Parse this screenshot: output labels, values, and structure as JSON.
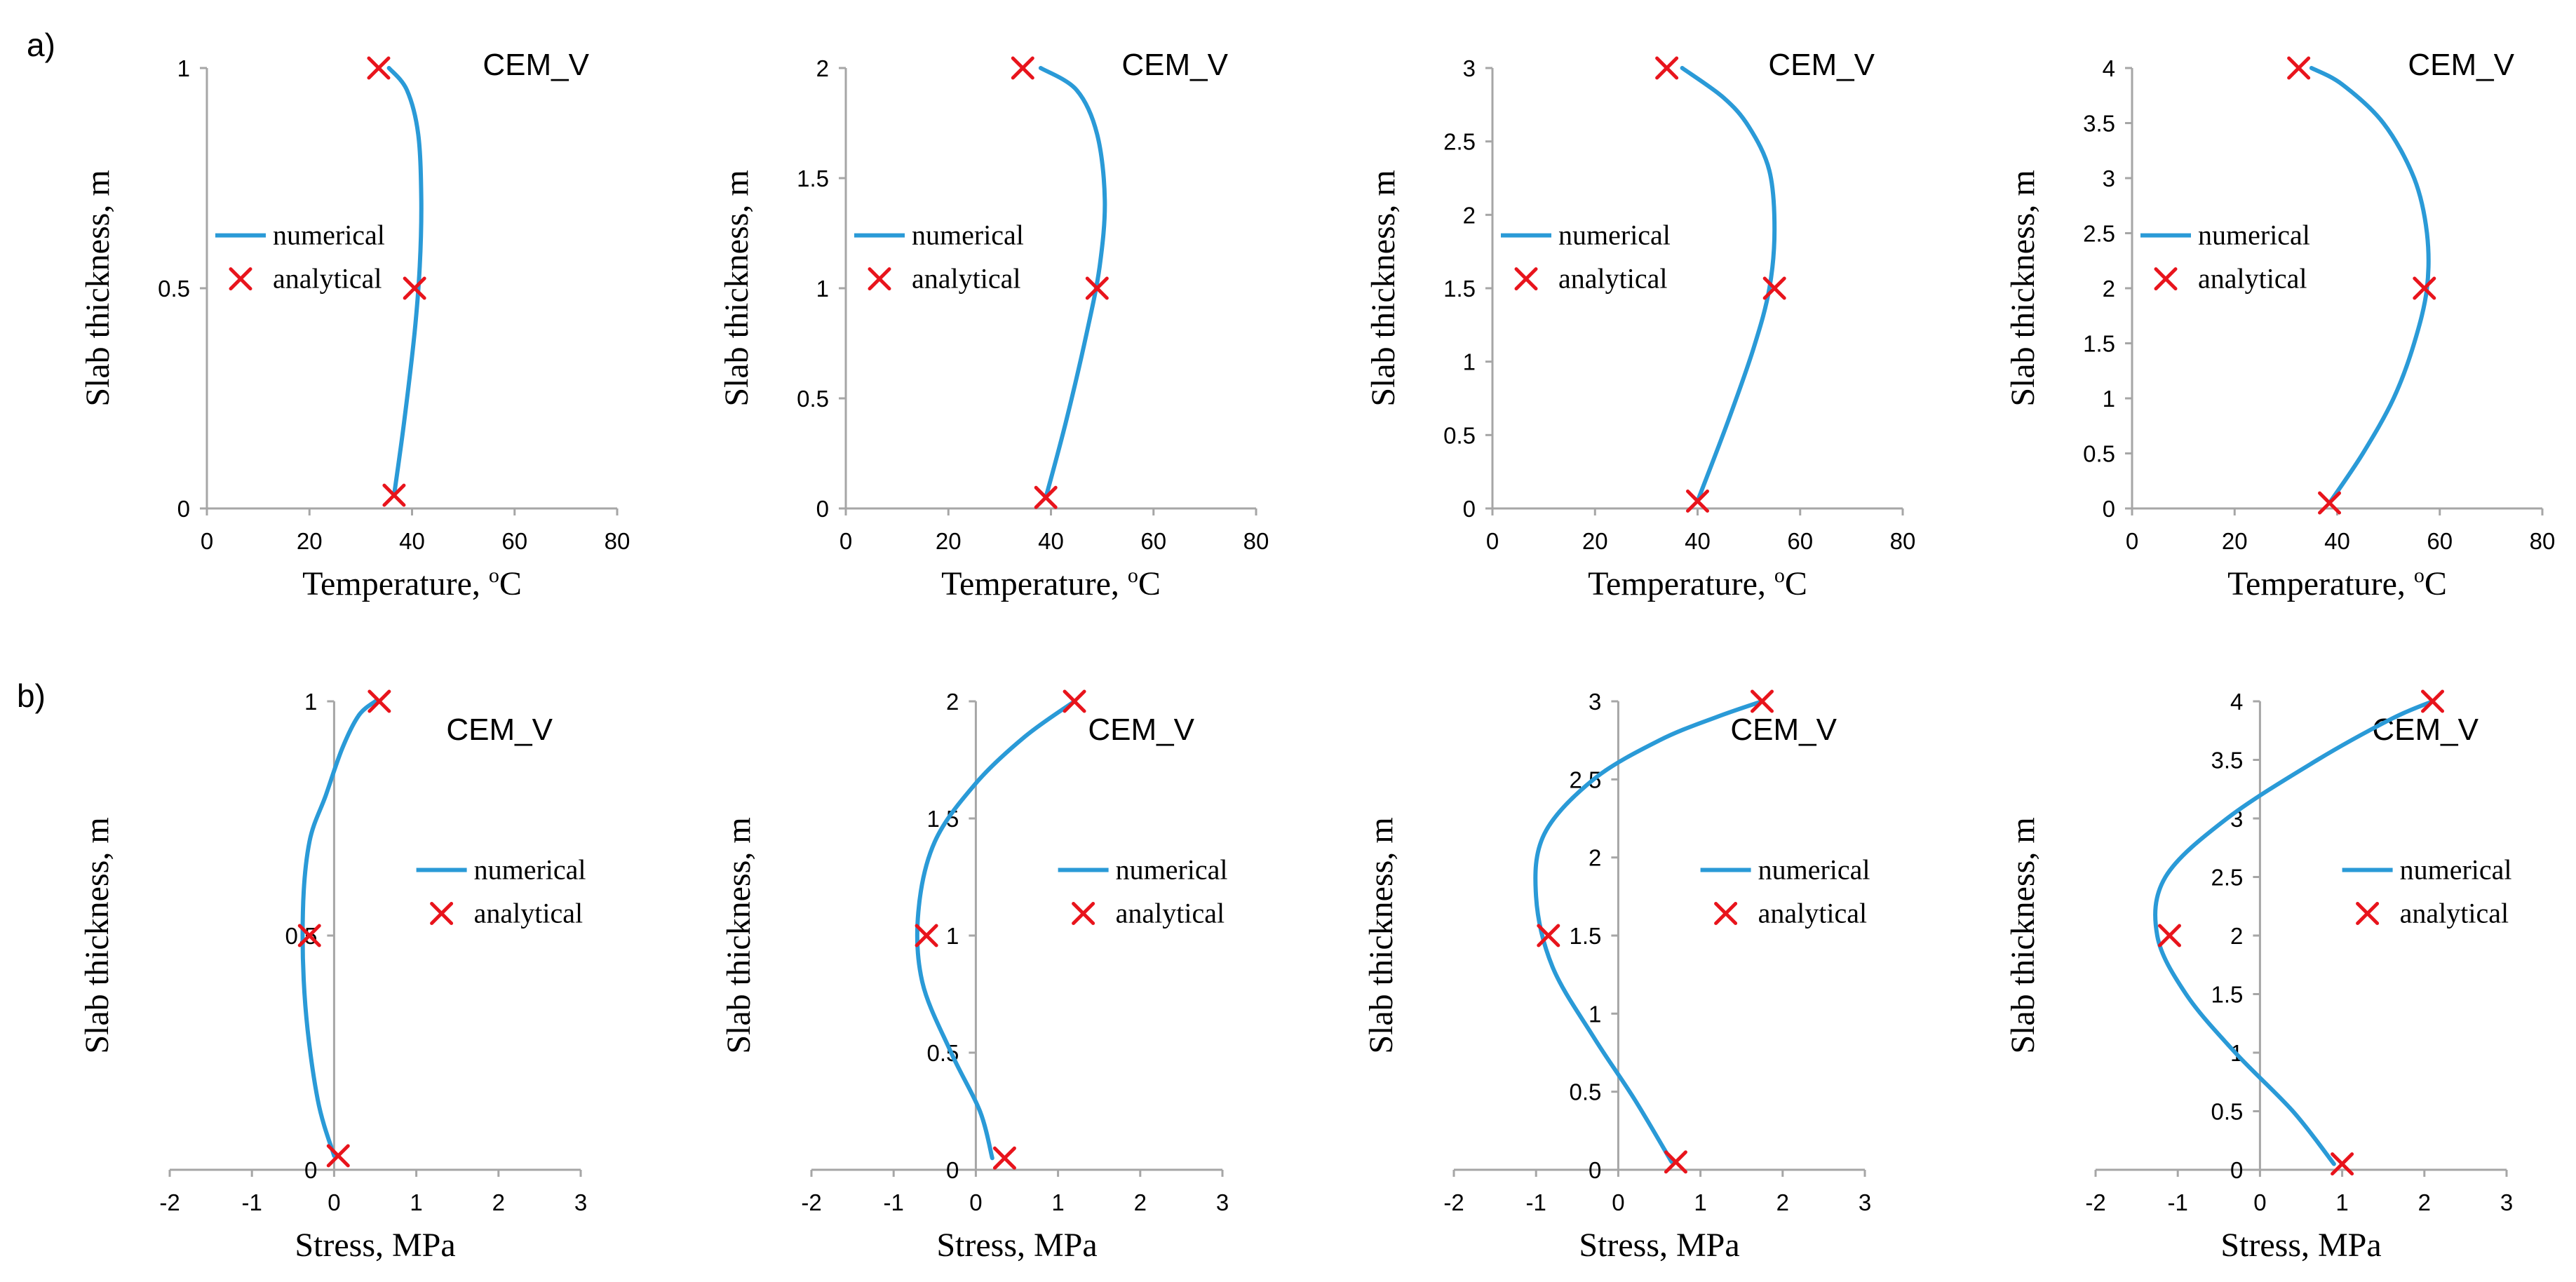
{
  "figure": {
    "row_labels": [
      "a)",
      "b)"
    ],
    "colors": {
      "numerical": "#2a9ad7",
      "analytical": "#e8141c",
      "axis": "#a6a6a6"
    }
  },
  "chart_data": [
    {
      "type": "line",
      "row": 0,
      "col": 0,
      "title": "CEM_V",
      "xlabel": "Temperature, ",
      "xlabel_sup": "o",
      "xlabel_after": "C",
      "ylabel": "Slab thickness, m",
      "xlim": [
        0,
        80
      ],
      "ylim": [
        0,
        1
      ],
      "xticks": [
        0,
        20,
        40,
        60,
        80
      ],
      "yticks": [
        0,
        0.5,
        1
      ],
      "legend": {
        "numerical": "numerical",
        "analytical": "analytical",
        "position": "left"
      },
      "numerical": {
        "x": [
          36.5,
          38.5,
          40.5,
          41.5,
          41.8,
          41.2,
          39.0,
          35.5
        ],
        "y": [
          0.03,
          0.2,
          0.4,
          0.55,
          0.7,
          0.85,
          0.95,
          1.0
        ]
      },
      "analytical": {
        "x": [
          36.5,
          40.5,
          33.5
        ],
        "y": [
          0.03,
          0.5,
          1.0
        ]
      }
    },
    {
      "type": "line",
      "row": 0,
      "col": 1,
      "title": "CEM_V",
      "xlabel": "Temperature, ",
      "xlabel_sup": "o",
      "xlabel_after": "C",
      "ylabel": "Slab thickness, m",
      "xlim": [
        0,
        80
      ],
      "ylim": [
        0,
        2
      ],
      "xticks": [
        0,
        20,
        40,
        60,
        80
      ],
      "yticks": [
        0,
        0.5,
        1,
        1.5,
        2
      ],
      "legend": {
        "numerical": "numerical",
        "analytical": "analytical",
        "position": "left"
      },
      "numerical": {
        "x": [
          39.0,
          43.0,
          47.0,
          49.5,
          50.5,
          49.0,
          45.0,
          38.0
        ],
        "y": [
          0.05,
          0.4,
          0.8,
          1.1,
          1.4,
          1.7,
          1.9,
          2.0
        ]
      },
      "analytical": {
        "x": [
          39.0,
          49.0,
          34.5
        ],
        "y": [
          0.05,
          1.0,
          2.0
        ]
      }
    },
    {
      "type": "line",
      "row": 0,
      "col": 2,
      "title": "CEM_V",
      "xlabel": "Temperature, ",
      "xlabel_sup": "o",
      "xlabel_after": "C",
      "ylabel": "Slab thickness, m",
      "xlim": [
        0,
        80
      ],
      "ylim": [
        0,
        3
      ],
      "xticks": [
        0,
        20,
        40,
        60,
        80
      ],
      "yticks": [
        0,
        0.5,
        1,
        1.5,
        2,
        2.5,
        3
      ],
      "legend": {
        "numerical": "numerical",
        "analytical": "analytical",
        "position": "left"
      },
      "numerical": {
        "x": [
          40.0,
          46.0,
          51.0,
          54.0,
          55.0,
          54.0,
          50.0,
          45.0,
          37.0
        ],
        "y": [
          0.05,
          0.6,
          1.1,
          1.5,
          1.9,
          2.3,
          2.6,
          2.8,
          3.0
        ]
      },
      "analytical": {
        "x": [
          40.0,
          55.0,
          34.0
        ],
        "y": [
          0.05,
          1.5,
          3.0
        ]
      }
    },
    {
      "type": "line",
      "row": 0,
      "col": 3,
      "title": "CEM_V",
      "xlabel": "Temperature, ",
      "xlabel_sup": "o",
      "xlabel_after": "C",
      "ylabel": "Slab thickness, m",
      "xlim": [
        0,
        80
      ],
      "ylim": [
        0,
        4
      ],
      "xticks": [
        0,
        20,
        40,
        60,
        80
      ],
      "yticks": [
        0,
        0.5,
        1,
        1.5,
        2,
        2.5,
        3,
        3.5,
        4
      ],
      "legend": {
        "numerical": "numerical",
        "analytical": "analytical",
        "position": "left"
      },
      "numerical": {
        "x": [
          38.5,
          45.0,
          51.0,
          55.0,
          57.5,
          57.5,
          55.0,
          49.0,
          41.0,
          35.0
        ],
        "y": [
          0.05,
          0.5,
          1.0,
          1.5,
          2.0,
          2.5,
          3.0,
          3.5,
          3.85,
          4.0
        ]
      },
      "analytical": {
        "x": [
          38.5,
          57.0,
          32.5
        ],
        "y": [
          0.05,
          2.0,
          4.0
        ]
      }
    },
    {
      "type": "line",
      "row": 1,
      "col": 0,
      "title": "CEM_V",
      "xlabel": "Stress, MPa",
      "xlabel_sup": "",
      "xlabel_after": "",
      "ylabel": "Slab thickness, m",
      "xlim": [
        -2,
        3
      ],
      "ylim": [
        0,
        1
      ],
      "xticks": [
        -2,
        -1,
        0,
        1,
        2,
        3
      ],
      "yticks": [
        0,
        0.5,
        1
      ],
      "legend": {
        "numerical": "numerical",
        "analytical": "analytical",
        "position": "right"
      },
      "numerical": {
        "x": [
          0.0,
          -0.2,
          -0.35,
          -0.38,
          -0.3,
          -0.1,
          0.1,
          0.3,
          0.5
        ],
        "y": [
          0.03,
          0.15,
          0.35,
          0.55,
          0.7,
          0.8,
          0.9,
          0.97,
          1.0
        ]
      },
      "analytical": {
        "x": [
          0.05,
          -0.3,
          0.55
        ],
        "y": [
          0.03,
          0.5,
          1.0
        ]
      }
    },
    {
      "type": "line",
      "row": 1,
      "col": 1,
      "title": "CEM_V",
      "xlabel": "Stress, MPa",
      "xlabel_sup": "",
      "xlabel_after": "",
      "ylabel": "Slab thickness, m",
      "xlim": [
        -2,
        3
      ],
      "ylim": [
        0,
        2
      ],
      "xticks": [
        -2,
        -1,
        0,
        1,
        2,
        3
      ],
      "yticks": [
        0,
        0.5,
        1,
        1.5,
        2
      ],
      "legend": {
        "numerical": "numerical",
        "analytical": "analytical",
        "position": "right"
      },
      "numerical": {
        "x": [
          0.2,
          0.05,
          -0.3,
          -0.65,
          -0.7,
          -0.5,
          0.0,
          0.6,
          1.2
        ],
        "y": [
          0.05,
          0.25,
          0.5,
          0.8,
          1.1,
          1.4,
          1.65,
          1.85,
          2.0
        ]
      },
      "analytical": {
        "x": [
          0.35,
          -0.6,
          1.2
        ],
        "y": [
          0.05,
          1.0,
          2.0
        ]
      }
    },
    {
      "type": "line",
      "row": 1,
      "col": 2,
      "title": "CEM_V",
      "xlabel": "Stress, MPa",
      "xlabel_sup": "",
      "xlabel_after": "",
      "ylabel": "Slab thickness, m",
      "xlim": [
        -2,
        3
      ],
      "ylim": [
        0,
        3
      ],
      "xticks": [
        -2,
        -1,
        0,
        1,
        2,
        3
      ],
      "yticks": [
        0,
        0.5,
        1,
        1.5,
        2,
        2.5,
        3
      ],
      "legend": {
        "numerical": "numerical",
        "analytical": "analytical",
        "position": "right"
      },
      "numerical": {
        "x": [
          0.65,
          0.2,
          -0.3,
          -0.8,
          -1.0,
          -0.9,
          -0.3,
          0.5,
          1.2,
          1.75
        ],
        "y": [
          0.05,
          0.45,
          0.85,
          1.3,
          1.75,
          2.15,
          2.5,
          2.75,
          2.9,
          3.0
        ]
      },
      "analytical": {
        "x": [
          0.7,
          -0.85,
          1.75
        ],
        "y": [
          0.05,
          1.5,
          3.0
        ]
      }
    },
    {
      "type": "line",
      "row": 1,
      "col": 3,
      "title": "CEM_V",
      "xlabel": "Stress, MPa",
      "xlabel_sup": "",
      "xlabel_after": "",
      "ylabel": "Slab thickness, m",
      "xlim": [
        -2,
        3
      ],
      "ylim": [
        0,
        4
      ],
      "xticks": [
        -2,
        -1,
        0,
        1,
        2,
        3
      ],
      "yticks": [
        0,
        0.5,
        1,
        1.5,
        2,
        2.5,
        3,
        3.5,
        4
      ],
      "legend": {
        "numerical": "numerical",
        "analytical": "analytical",
        "position": "right"
      },
      "numerical": {
        "x": [
          0.9,
          0.4,
          -0.3,
          -0.9,
          -1.25,
          -1.15,
          -0.4,
          0.7,
          1.6,
          2.1
        ],
        "y": [
          0.05,
          0.5,
          1.0,
          1.5,
          2.0,
          2.5,
          3.0,
          3.5,
          3.85,
          4.0
        ]
      },
      "analytical": {
        "x": [
          1.0,
          -1.1,
          2.1
        ],
        "y": [
          0.05,
          2.0,
          4.0
        ]
      }
    }
  ]
}
